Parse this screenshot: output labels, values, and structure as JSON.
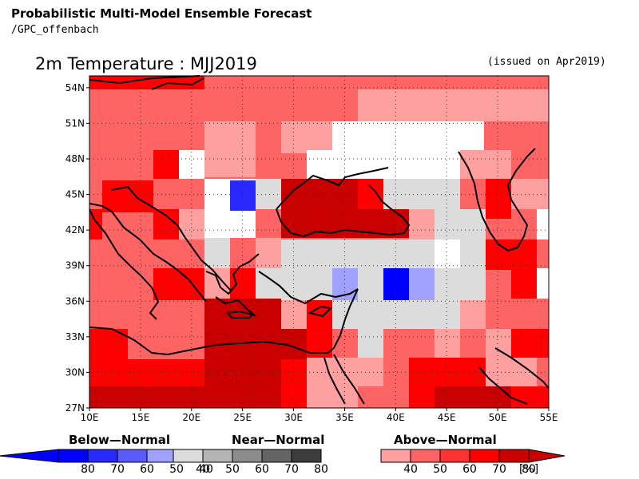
{
  "header": {
    "title": "Probabilistic Multi-Model Ensemble Forecast",
    "source": "/GPC_offenbach",
    "map_title": "2m Temperature : MJJ2019",
    "issued": "(issued on Apr2019)"
  },
  "map": {
    "lon_labels": [
      "10E",
      "15E",
      "20E",
      "25E",
      "30E",
      "35E",
      "40E",
      "45E",
      "50E",
      "55E"
    ],
    "lat_labels": [
      "54N",
      "51N",
      "48N",
      "45N",
      "42N",
      "39N",
      "36N",
      "33N",
      "30N",
      "27N"
    ],
    "lon_range": [
      10,
      55
    ],
    "lat_range": [
      27,
      55
    ],
    "grid": true
  },
  "legend": {
    "below_label": "Below—Normal",
    "near_label": "Near—Normal",
    "above_label": "Above—Normal",
    "below_ticks": [
      "80",
      "70",
      "60",
      "50",
      "40"
    ],
    "near_ticks": [
      "40",
      "50",
      "60",
      "70",
      "80"
    ],
    "above_ticks": [
      "40",
      "50",
      "60",
      "70",
      "80"
    ],
    "unit": "[%]",
    "below_colors": [
      "#0000cd",
      "#0000ff",
      "#2828ff",
      "#5a5aff",
      "#a0a0ff"
    ],
    "near_colors": [
      "#dcdcdc",
      "#b4b4b4",
      "#8c8c8c",
      "#646464",
      "#3c3c3c"
    ],
    "above_colors": [
      "#ffa0a0",
      "#ff6464",
      "#ff3232",
      "#ff0000",
      "#c80000"
    ]
  }
}
